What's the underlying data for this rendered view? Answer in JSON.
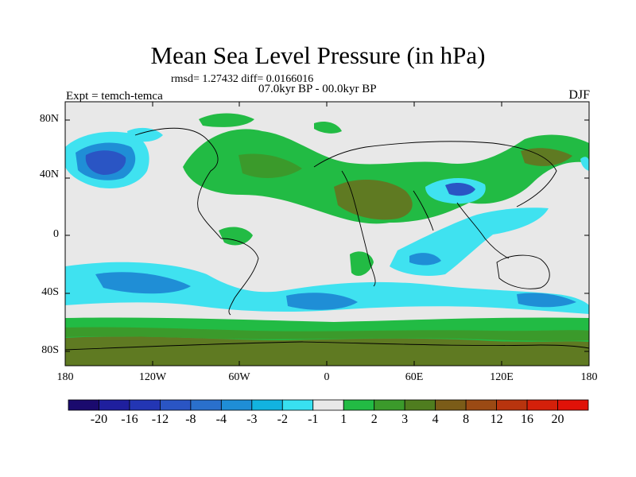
{
  "title": "Mean Sea Level Pressure (in hPa)",
  "stats": "rmsd= 1.27432 diff= 0.0166016",
  "period": "07.0kyr BP - 00.0kyr BP",
  "experiment": "Expt = temch-temca",
  "season": "DJF",
  "lat_labels": [
    "80N",
    "40N",
    "0",
    "40S",
    "80S"
  ],
  "lon_labels": [
    "180",
    "120W",
    "60W",
    "0",
    "60E",
    "120E",
    "180"
  ],
  "colorbar": {
    "labels": [
      "-20",
      "-16",
      "-12",
      "-8",
      "-4",
      "-3",
      "-2",
      "-1",
      "1",
      "2",
      "3",
      "4",
      "8",
      "12",
      "16",
      "20"
    ],
    "colors": [
      "#1a0a6e",
      "#1f1f9e",
      "#2336b4",
      "#2a55c4",
      "#2a70cc",
      "#1f8ed6",
      "#12b3e0",
      "#38e0f0",
      "#e8e8e8",
      "#22bb44",
      "#3b9a2b",
      "#4f7d1f",
      "#7b5c18",
      "#9b4a14",
      "#b8340e",
      "#d4200a",
      "#e01208"
    ]
  },
  "colors": {
    "background_neutral": "#e8e8e8",
    "green_light": "#22bb44",
    "green_mid": "#3b9a2b",
    "olive": "#5f7a22",
    "cyan_light": "#3fe2f0",
    "cyan_mid": "#14b3de",
    "blue_mid": "#1f8ed6",
    "blue_dark": "#2a55c4"
  }
}
